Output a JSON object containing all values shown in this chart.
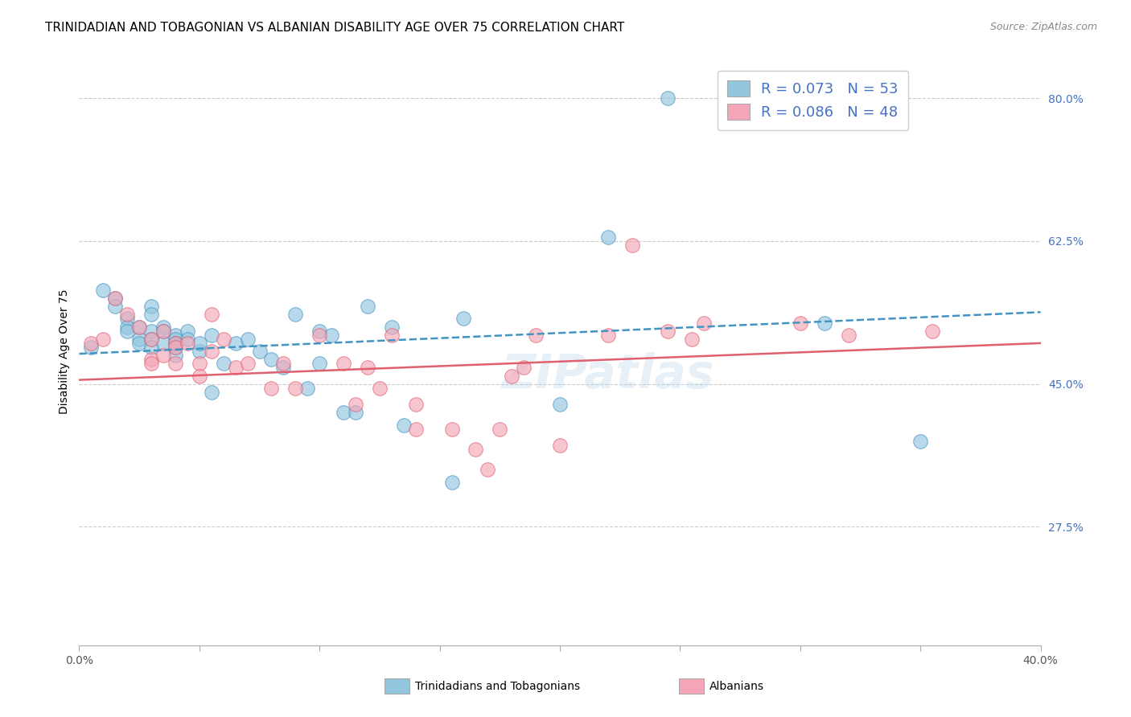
{
  "title": "TRINIDADIAN AND TOBAGONIAN VS ALBANIAN DISABILITY AGE OVER 75 CORRELATION CHART",
  "source": "Source: ZipAtlas.com",
  "ylabel": "Disability Age Over 75",
  "xlim": [
    0.0,
    0.4
  ],
  "ylim": [
    0.13,
    0.85
  ],
  "yticks": [
    0.275,
    0.45,
    0.625,
    0.8
  ],
  "ytick_labels": [
    "27.5%",
    "45.0%",
    "62.5%",
    "80.0%"
  ],
  "xticks": [
    0.0,
    0.05,
    0.1,
    0.15,
    0.2,
    0.25,
    0.3,
    0.35,
    0.4
  ],
  "xtick_labels": [
    "0.0%",
    "",
    "",
    "",
    "",
    "",
    "",
    "",
    "40.0%"
  ],
  "blue_color": "#92c5de",
  "pink_color": "#f4a6b8",
  "blue_line_color": "#4393c3",
  "pink_line_color": "#e0606e",
  "legend_label1": "R = 0.073   N = 53",
  "legend_label2": "R = 0.086   N = 48",
  "watermark": "ZIPatlas",
  "blue_scatter_x": [
    0.005,
    0.01,
    0.015,
    0.015,
    0.02,
    0.02,
    0.02,
    0.025,
    0.025,
    0.025,
    0.03,
    0.03,
    0.03,
    0.03,
    0.03,
    0.035,
    0.035,
    0.035,
    0.04,
    0.04,
    0.04,
    0.04,
    0.04,
    0.045,
    0.045,
    0.05,
    0.05,
    0.055,
    0.055,
    0.06,
    0.065,
    0.07,
    0.075,
    0.08,
    0.085,
    0.09,
    0.095,
    0.1,
    0.1,
    0.105,
    0.11,
    0.115,
    0.12,
    0.13,
    0.135,
    0.155,
    0.16,
    0.2,
    0.22,
    0.245,
    0.3,
    0.31,
    0.35
  ],
  "blue_scatter_y": [
    0.495,
    0.565,
    0.555,
    0.545,
    0.53,
    0.52,
    0.515,
    0.52,
    0.505,
    0.5,
    0.545,
    0.535,
    0.515,
    0.505,
    0.495,
    0.52,
    0.515,
    0.5,
    0.51,
    0.505,
    0.5,
    0.495,
    0.485,
    0.515,
    0.505,
    0.49,
    0.5,
    0.44,
    0.51,
    0.475,
    0.5,
    0.505,
    0.49,
    0.48,
    0.47,
    0.535,
    0.445,
    0.475,
    0.515,
    0.51,
    0.415,
    0.415,
    0.545,
    0.52,
    0.4,
    0.33,
    0.53,
    0.425,
    0.63,
    0.8,
    0.8,
    0.525,
    0.38
  ],
  "pink_scatter_x": [
    0.005,
    0.01,
    0.015,
    0.02,
    0.025,
    0.03,
    0.03,
    0.03,
    0.035,
    0.035,
    0.04,
    0.04,
    0.04,
    0.045,
    0.05,
    0.05,
    0.055,
    0.055,
    0.06,
    0.065,
    0.07,
    0.08,
    0.085,
    0.09,
    0.1,
    0.11,
    0.115,
    0.12,
    0.125,
    0.13,
    0.14,
    0.14,
    0.155,
    0.165,
    0.17,
    0.175,
    0.18,
    0.185,
    0.19,
    0.2,
    0.22,
    0.23,
    0.245,
    0.255,
    0.26,
    0.3,
    0.32,
    0.355
  ],
  "pink_scatter_y": [
    0.5,
    0.505,
    0.555,
    0.535,
    0.52,
    0.505,
    0.48,
    0.475,
    0.515,
    0.485,
    0.5,
    0.495,
    0.475,
    0.5,
    0.475,
    0.46,
    0.535,
    0.49,
    0.505,
    0.47,
    0.475,
    0.445,
    0.475,
    0.445,
    0.51,
    0.475,
    0.425,
    0.47,
    0.445,
    0.51,
    0.425,
    0.395,
    0.395,
    0.37,
    0.345,
    0.395,
    0.46,
    0.47,
    0.51,
    0.375,
    0.51,
    0.62,
    0.515,
    0.505,
    0.525,
    0.525,
    0.51,
    0.515
  ],
  "blue_trend_x": [
    0.0,
    0.4
  ],
  "blue_trend_y": [
    0.487,
    0.538
  ],
  "pink_trend_x": [
    0.0,
    0.4
  ],
  "pink_trend_y": [
    0.455,
    0.5
  ],
  "title_fontsize": 11,
  "axis_label_fontsize": 10,
  "tick_fontsize": 10,
  "right_tick_color": "#4472c4",
  "bottom_tick_color": "#555555"
}
